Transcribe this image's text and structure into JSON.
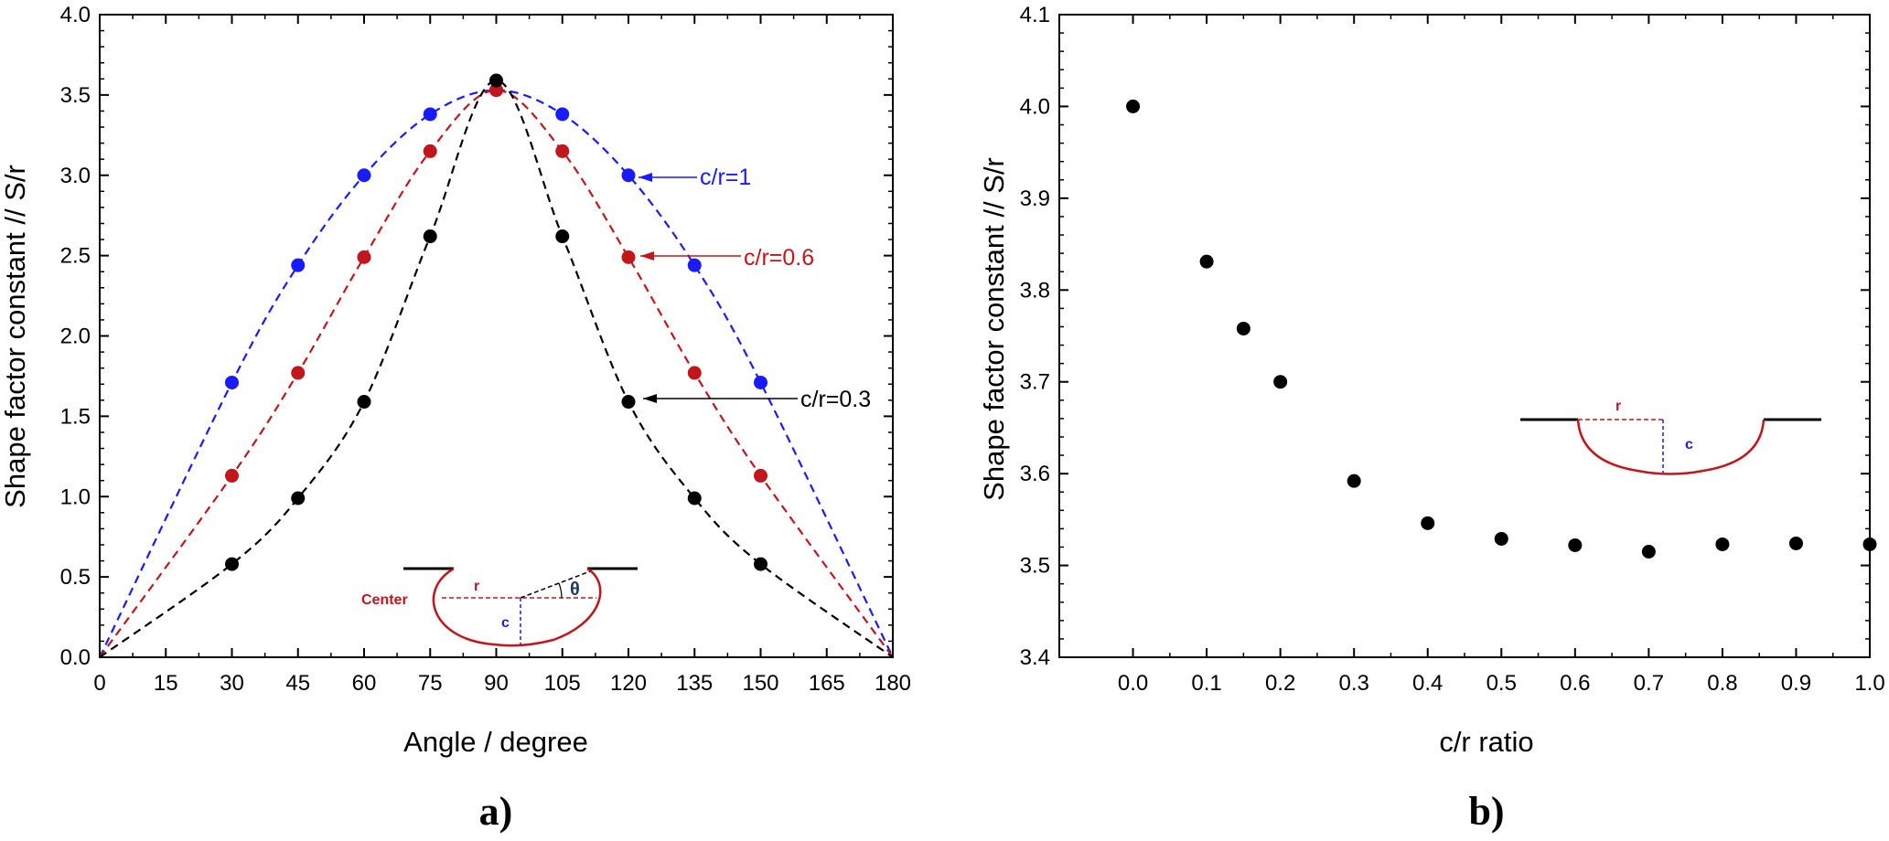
{
  "chart_data": [
    {
      "type": "scatter",
      "panel_label": "a)",
      "xlabel": "Angle / degree",
      "ylabel": "Shape factor constant // S/r",
      "xlim": [
        0,
        180
      ],
      "ylim": [
        0,
        4.0
      ],
      "x_ticks": [
        "0",
        "15",
        "30",
        "45",
        "60",
        "75",
        "90",
        "105",
        "120",
        "135",
        "150",
        "165",
        "180"
      ],
      "y_ticks": [
        "0.0",
        "0.5",
        "1.0",
        "1.5",
        "2.0",
        "2.5",
        "3.0",
        "3.5",
        "4.0"
      ],
      "grid": false,
      "series": [
        {
          "label": "c/r=1",
          "color": "#1a1aff",
          "x": [
            30,
            45,
            60,
            75,
            90,
            105,
            120,
            135,
            150
          ],
          "y": [
            1.71,
            2.44,
            3.0,
            3.38,
            3.53,
            3.38,
            3.0,
            2.44,
            1.71
          ]
        },
        {
          "label": "c/r=0.6",
          "color": "#c0161c",
          "x": [
            30,
            45,
            60,
            75,
            90,
            105,
            120,
            135,
            150
          ],
          "y": [
            1.13,
            1.77,
            2.49,
            3.15,
            3.53,
            3.15,
            2.49,
            1.77,
            1.13
          ]
        },
        {
          "label": "c/r=0.3",
          "color": "#000000",
          "x": [
            30,
            45,
            60,
            75,
            90,
            105,
            120,
            135,
            150
          ],
          "y": [
            0.58,
            0.99,
            1.59,
            2.62,
            3.59,
            2.62,
            1.59,
            0.99,
            0.58
          ]
        }
      ],
      "inset_labels": {
        "center": "Center",
        "r": "r",
        "c": "c",
        "theta": "θ"
      }
    },
    {
      "type": "scatter",
      "panel_label": "b)",
      "xlabel": "c/r ratio",
      "ylabel": "Shape factor constant // S/r",
      "xlim": [
        -0.1,
        1.0
      ],
      "ylim": [
        3.4,
        4.1
      ],
      "x_ticks": [
        "0.0",
        "0.1",
        "0.2",
        "0.3",
        "0.4",
        "0.5",
        "0.6",
        "0.7",
        "0.8",
        "0.9",
        "1.0"
      ],
      "y_ticks": [
        "3.4",
        "3.5",
        "3.6",
        "3.7",
        "3.8",
        "3.9",
        "4.0",
        "4.1"
      ],
      "grid": false,
      "series": [
        {
          "color": "#000000",
          "x": [
            0.0,
            0.1,
            0.15,
            0.2,
            0.3,
            0.4,
            0.5,
            0.6,
            0.7,
            0.8,
            0.9,
            1.0
          ],
          "y": [
            4.0,
            3.831,
            3.758,
            3.7,
            3.592,
            3.546,
            3.529,
            3.522,
            3.515,
            3.523,
            3.524,
            3.523
          ]
        }
      ],
      "inset_labels": {
        "r": "r",
        "c": "c"
      }
    }
  ]
}
